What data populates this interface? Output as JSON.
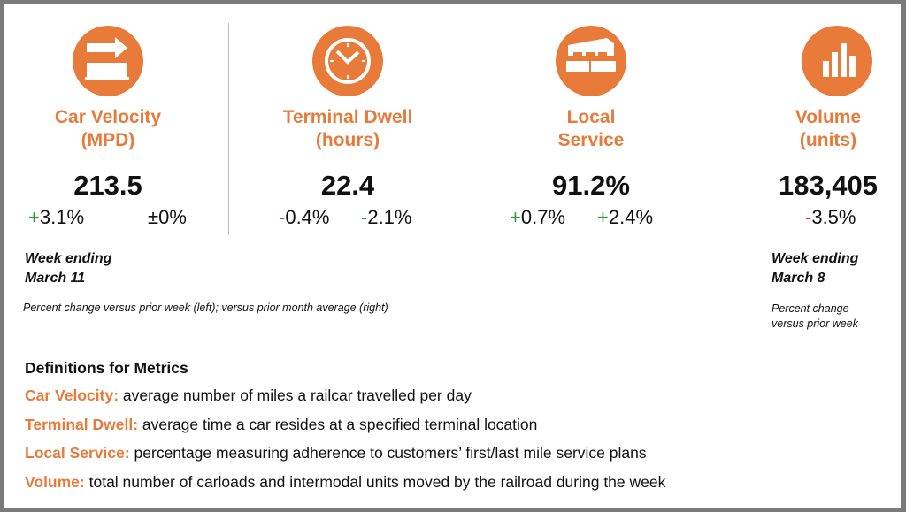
{
  "colors": {
    "accent": "#e87a3a",
    "positive": "#2e9a3e",
    "negative": "#d8323a"
  },
  "metrics": [
    {
      "icon": "railcar-arrow-icon",
      "title1": "Car Velocity",
      "title2": "(MPD)",
      "value": "213.5",
      "changes": [
        {
          "sign": "+",
          "num": "3.1%"
        },
        {
          "sign": "±",
          "num": "0%"
        }
      ]
    },
    {
      "icon": "clock-icon",
      "title1": "Terminal Dwell",
      "title2": "(hours)",
      "value": "22.4",
      "changes": [
        {
          "sign": "-",
          "num": "0.4%"
        },
        {
          "sign": "-",
          "num": "2.1%"
        }
      ]
    },
    {
      "icon": "warehouse-icon",
      "title1": "Local",
      "title2": "Service",
      "value": "91.2%",
      "changes": [
        {
          "sign": "+",
          "num": "0.7%"
        },
        {
          "sign": "+",
          "num": "2.4%"
        }
      ]
    },
    {
      "icon": "bar-chart-icon",
      "title1": "Volume",
      "title2": "(units)",
      "value": "183,405",
      "changes": [
        {
          "sign": "-",
          "num": "3.5%"
        }
      ]
    }
  ],
  "left_note": {
    "week1": "Week ending",
    "week2": "March 11",
    "note": "Percent change versus prior week (left); versus prior month average (right)"
  },
  "right_note": {
    "week1": "Week ending",
    "week2": "March 8",
    "note1": "Percent change",
    "note2": "versus prior week"
  },
  "definitions": {
    "heading": "Definitions for Metrics",
    "items": [
      {
        "term": "Car Velocity:",
        "text": " average number of miles a railcar travelled per day"
      },
      {
        "term": "Terminal Dwell:",
        "text": " average time a car resides at a specified terminal location"
      },
      {
        "term": "Local Service:",
        "text": " percentage measuring adherence to customers’ first/last mile service plans"
      },
      {
        "term": "Volume:",
        "text": " total number of carloads and intermodal units moved by the railroad during the week"
      }
    ]
  }
}
